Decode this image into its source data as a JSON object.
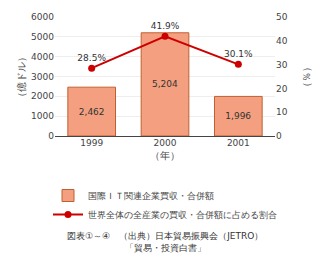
{
  "chart_data": {
    "type": "bar",
    "categories": [
      "1999",
      "2000",
      "2001"
    ],
    "xlabel": "（年）",
    "ylabel": "（億ドル）",
    "y2label": "（％）",
    "annotations": [
      "図表①～④　（出典）日本貿易振興会（JETRO）\n「貿易・投資白書」"
    ],
    "series": [
      {
        "name": "国際ＩＴ関連企業買収・合併額",
        "type": "bar",
        "color": "#F4A080",
        "values": [
          2462,
          5204,
          1996
        ],
        "value_labels": [
          "2,462",
          "5,204",
          "1,996"
        ]
      },
      {
        "name": "世界全体の全産業の買収・合併額に占める割合",
        "type": "line",
        "axis": "y2",
        "color": "#CC0000",
        "marker": "circle",
        "line_style": "solid",
        "values": [
          28.5,
          41.9,
          30.1
        ],
        "value_labels": [
          "28.5%",
          "41.9%",
          "30.1%"
        ]
      }
    ],
    "ylim": [
      0,
      6000
    ],
    "yticks": [
      0,
      1000,
      2000,
      3000,
      4000,
      5000,
      6000
    ],
    "y2lim": [
      0,
      50
    ],
    "y2ticks": [
      0,
      10,
      20,
      30,
      40,
      50
    ],
    "grid": true,
    "legend": "bottom",
    "data_labels": true
  }
}
